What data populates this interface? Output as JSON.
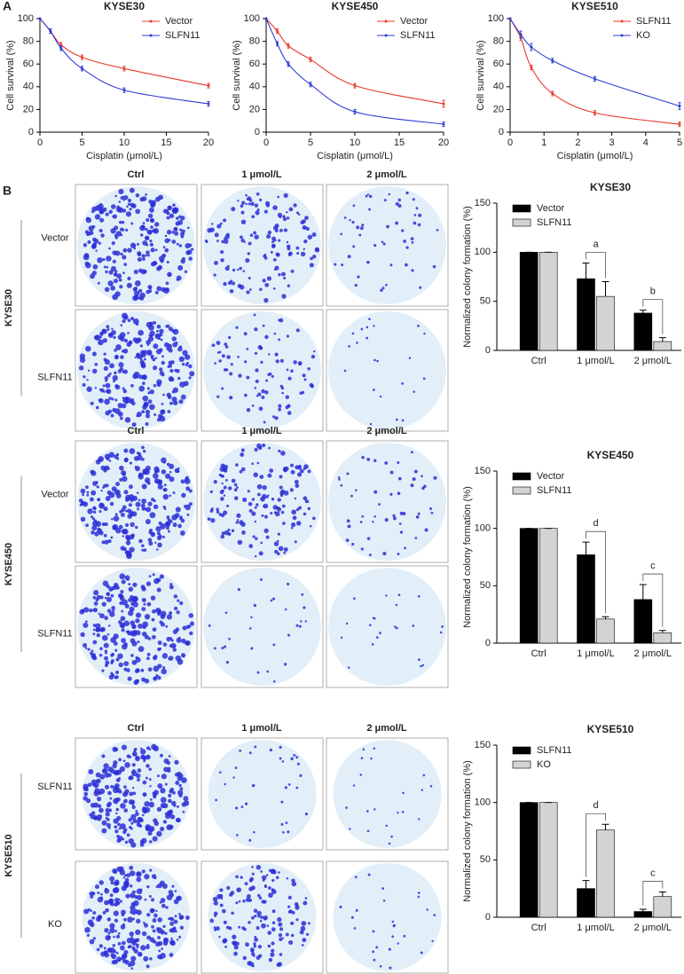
{
  "panel_labels": [
    "A",
    "B"
  ],
  "chart_data": [
    {
      "type": "line",
      "title": "KYSE30",
      "xlabel": "Cisplatin (μmol/L)",
      "ylabel": "Cell survival (%)",
      "x": [
        0,
        1.25,
        2.5,
        5,
        10,
        20
      ],
      "series": [
        {
          "name": "Vector",
          "color": "#e8392b",
          "values": [
            100,
            89,
            77,
            66,
            56,
            41
          ],
          "errors": [
            0,
            2,
            2,
            2,
            2,
            2
          ]
        },
        {
          "name": "SLFN11",
          "color": "#2e3bd6",
          "values": [
            100,
            89,
            74,
            56,
            37,
            25
          ],
          "errors": [
            0,
            2,
            2,
            2,
            2,
            2
          ]
        }
      ],
      "xlim": [
        0,
        20
      ],
      "xticks": [
        0,
        5,
        10,
        15,
        20
      ],
      "ylim": [
        0,
        100
      ],
      "yticks": [
        0,
        20,
        40,
        60,
        80,
        100
      ],
      "legend": "upper right"
    },
    {
      "type": "line",
      "title": "KYSE450",
      "xlabel": "Cisplatin (μmol/L)",
      "ylabel": "Cell survival (%)",
      "x": [
        0,
        1.25,
        2.5,
        5,
        10,
        20
      ],
      "series": [
        {
          "name": "Vector",
          "color": "#e8392b",
          "values": [
            100,
            89,
            76,
            64,
            41,
            25
          ],
          "errors": [
            0,
            2,
            2,
            2,
            2,
            3
          ]
        },
        {
          "name": "SLFN11",
          "color": "#2e3bd6",
          "values": [
            100,
            78,
            60,
            42,
            18,
            7
          ],
          "errors": [
            0,
            2,
            2,
            2,
            2,
            2
          ]
        }
      ],
      "xlim": [
        0,
        20
      ],
      "xticks": [
        0,
        5,
        10,
        15,
        20
      ],
      "ylim": [
        0,
        100
      ],
      "yticks": [
        0,
        20,
        40,
        60,
        80,
        100
      ],
      "legend": "upper right"
    },
    {
      "type": "line",
      "title": "KYSE510",
      "xlabel": "Cisplatin (μmol/L)",
      "ylabel": "Cell survival (%)",
      "x": [
        0,
        0.3125,
        0.625,
        1.25,
        2.5,
        5
      ],
      "series": [
        {
          "name": "SLFN11",
          "color": "#e8392b",
          "values": [
            100,
            83,
            57,
            34,
            17,
            7
          ],
          "errors": [
            0,
            2,
            2,
            2,
            2,
            2
          ]
        },
        {
          "name": "KO",
          "color": "#2e3bd6",
          "values": [
            100,
            86,
            75,
            63,
            47,
            23
          ],
          "errors": [
            0,
            3,
            3,
            2,
            2,
            3
          ]
        }
      ],
      "xlim": [
        0,
        5
      ],
      "xticks": [
        0,
        1,
        2,
        3,
        4,
        5
      ],
      "ylim": [
        0,
        100
      ],
      "yticks": [
        0,
        20,
        40,
        60,
        80,
        100
      ],
      "legend": "upper right"
    },
    {
      "type": "bar",
      "title": "KYSE30",
      "ylabel": "Normalized colony formation (%)",
      "categories": [
        "Ctrl",
        "1 μmol/L",
        "2 μmol/L"
      ],
      "series": [
        {
          "name": "Vector",
          "color": "#000000",
          "values": [
            100,
            73,
            38
          ],
          "errors": [
            0,
            16,
            3
          ]
        },
        {
          "name": "SLFN11",
          "color": "#d3d3d3",
          "values": [
            100,
            55,
            9
          ],
          "errors": [
            0,
            15,
            4
          ]
        }
      ],
      "significance": [
        null,
        "a",
        "b"
      ],
      "ylim": [
        0,
        150
      ],
      "yticks": [
        0,
        50,
        100,
        150
      ],
      "legend": "upper left"
    },
    {
      "type": "bar",
      "title": "KYSE450",
      "ylabel": "Normalized colony formation (%)",
      "categories": [
        "Ctrl",
        "1 μmol/L",
        "2 μmol/L"
      ],
      "series": [
        {
          "name": "Vector",
          "color": "#000000",
          "values": [
            100,
            77,
            38
          ],
          "errors": [
            0,
            11,
            13
          ]
        },
        {
          "name": "SLFN11",
          "color": "#d3d3d3",
          "values": [
            100,
            21,
            9
          ],
          "errors": [
            0,
            2,
            2
          ]
        }
      ],
      "significance": [
        null,
        "d",
        "c"
      ],
      "ylim": [
        0,
        150
      ],
      "yticks": [
        0,
        50,
        100,
        150
      ],
      "legend": "upper left"
    },
    {
      "type": "bar",
      "title": "KYSE510",
      "ylabel": "Normalized colony formation (%)",
      "categories": [
        "Ctrl",
        "1 μmol/L",
        "2 μmol/L"
      ],
      "series": [
        {
          "name": "SLFN11",
          "color": "#000000",
          "values": [
            100,
            25,
            5
          ],
          "errors": [
            0,
            7,
            2
          ]
        },
        {
          "name": "KO",
          "color": "#d3d3d3",
          "values": [
            100,
            76,
            18
          ],
          "errors": [
            0,
            5,
            4
          ]
        }
      ],
      "significance": [
        null,
        "d",
        "c"
      ],
      "ylim": [
        0,
        150
      ],
      "yticks": [
        0,
        50,
        100,
        150
      ],
      "legend": "upper left"
    }
  ],
  "plate_grids": [
    {
      "cell_line": "KYSE30",
      "columns": [
        "Ctrl",
        "1 μmol/L",
        "2 μmol/L"
      ],
      "rows": [
        "Vector",
        "SLFN11"
      ]
    },
    {
      "cell_line": "KYSE450",
      "columns": [
        "Ctrl",
        "1 μmol/L",
        "2 μmol/L"
      ],
      "rows": [
        "Vector",
        "SLFN11"
      ]
    },
    {
      "cell_line": "KYSE510",
      "columns": [
        "Ctrl",
        "1 μmol/L",
        "2 μmol/L"
      ],
      "rows": [
        "SLFN11",
        "KO"
      ]
    }
  ]
}
